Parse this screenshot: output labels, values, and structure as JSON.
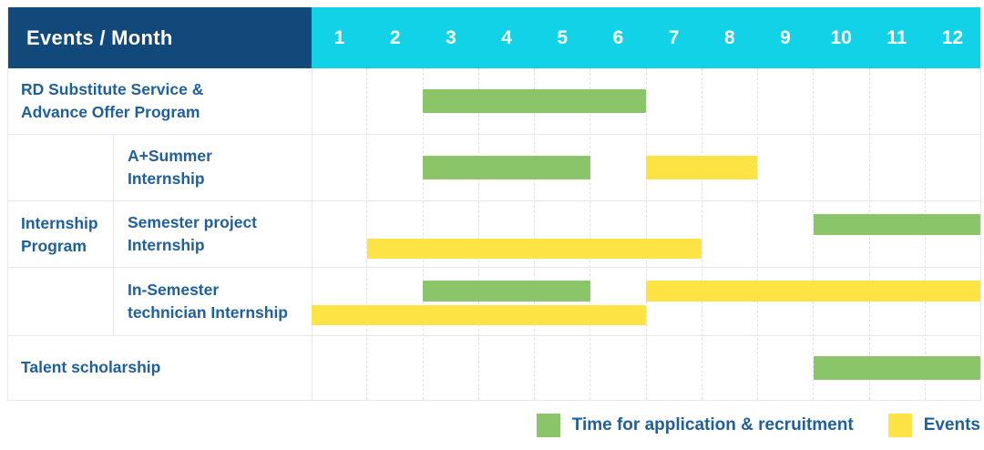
{
  "table": {
    "corner_label": "Events / Month",
    "months": [
      "1",
      "2",
      "3",
      "4",
      "5",
      "6",
      "7",
      "8",
      "9",
      "10",
      "11",
      "12"
    ]
  },
  "legend": {
    "items": [
      {
        "name": "application",
        "label": "Time for application & recruitment",
        "color": "#8bc56a"
      },
      {
        "name": "events",
        "label": "Events",
        "color": "#fde344"
      }
    ]
  },
  "colors": {
    "header_bg": "#11497b",
    "months_bg": "#12d2e8",
    "header_text": "#ffffff",
    "label_text": "#1e5f9e",
    "bar_green": "#8bc56a",
    "bar_yellow": "#fde344",
    "grid_line": "#e8e8e8"
  },
  "chart_data": {
    "type": "gantt",
    "title": "Events / Month",
    "x_axis": {
      "unit": "month",
      "ticks": [
        1,
        2,
        3,
        4,
        5,
        6,
        7,
        8,
        9,
        10,
        11,
        12
      ]
    },
    "legend_position": "bottom-right",
    "series_meta": {
      "application": {
        "label": "Time for application & recruitment",
        "color": "#8bc56a"
      },
      "events": {
        "label": "Events",
        "color": "#fde344"
      }
    },
    "group_label": "Internship Program",
    "group_label_lines": [
      "Internship",
      "Program"
    ],
    "rows": [
      {
        "group": "",
        "label": "RD Substitute Service & Advance Offer Program",
        "label_lines": [
          "RD Substitute Service &",
          "Advance Offer Program"
        ],
        "bars": [
          {
            "series": "application",
            "start_month": 3,
            "end_month": 6,
            "lane": "center"
          }
        ]
      },
      {
        "group": "Internship Program",
        "label": "A+Summer Internship",
        "label_lines": [
          "A+Summer",
          "Internship"
        ],
        "bars": [
          {
            "series": "application",
            "start_month": 3,
            "end_month": 5,
            "lane": "center"
          },
          {
            "series": "events",
            "start_month": 7,
            "end_month": 8,
            "lane": "center"
          }
        ]
      },
      {
        "group": "Internship Program",
        "label": "Semester project Internship",
        "label_lines": [
          "Semester project",
          "Internship"
        ],
        "bars": [
          {
            "series": "application",
            "start_month": 10,
            "end_month": 12,
            "lane": "top"
          },
          {
            "series": "events",
            "start_month": 2,
            "end_month": 7,
            "lane": "bottom"
          }
        ]
      },
      {
        "group": "Internship Program",
        "label": "In-Semester technician Internship",
        "label_lines": [
          "In-Semester",
          "technician Internship"
        ],
        "bars": [
          {
            "series": "application",
            "start_month": 3,
            "end_month": 5,
            "lane": "top"
          },
          {
            "series": "events",
            "start_month": 7,
            "end_month": 12,
            "lane": "top"
          },
          {
            "series": "events",
            "start_month": 1,
            "end_month": 6,
            "lane": "bottom"
          }
        ]
      },
      {
        "group": "",
        "label": "Talent scholarship",
        "label_lines": [
          "Talent scholarship"
        ],
        "bars": [
          {
            "series": "application",
            "start_month": 10,
            "end_month": 12,
            "lane": "center"
          }
        ]
      }
    ]
  }
}
